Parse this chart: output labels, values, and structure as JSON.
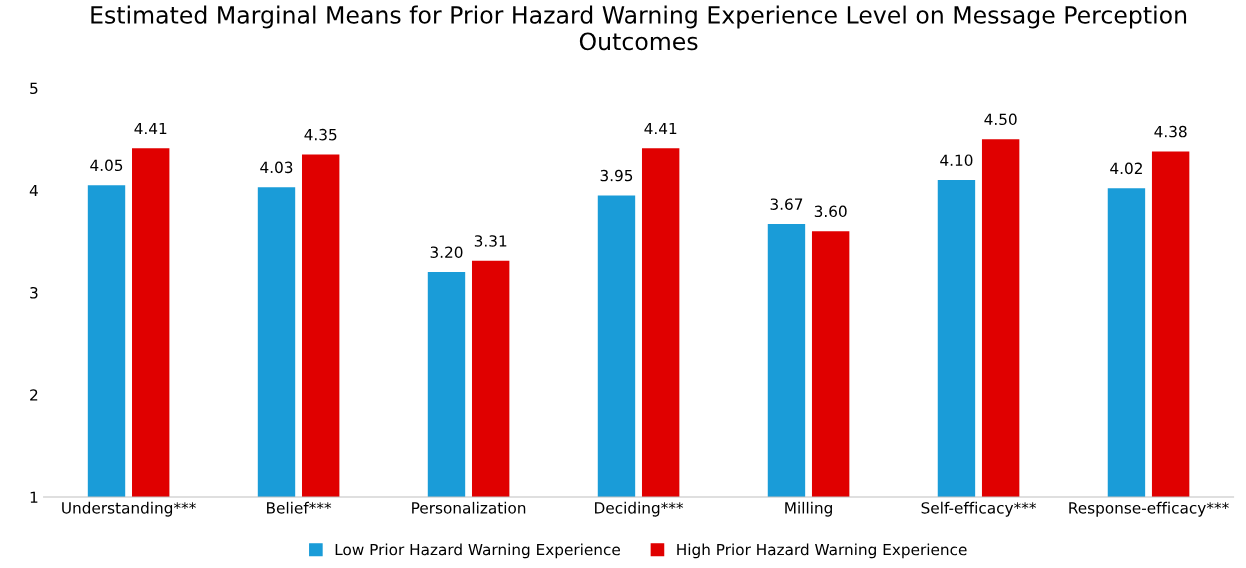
{
  "chart_data": {
    "type": "bar",
    "title": "Estimated Marginal Means for Prior Hazard Warning Experience Level on Message Perception Outcomes",
    "categories": [
      "Understanding***",
      "Belief***",
      "Personalization",
      "Deciding***",
      "Milling",
      "Self-efficacy***",
      "Response-efficacy***"
    ],
    "series": [
      {
        "name": "Low Prior Hazard Warning Experience",
        "color": "#1a9cd8",
        "values": [
          4.05,
          4.03,
          3.2,
          3.95,
          3.67,
          4.1,
          4.02
        ],
        "value_labels": [
          "4.05",
          "4.03",
          "3.20",
          "3.95",
          "3.67",
          "4.10",
          "4.02"
        ]
      },
      {
        "name": "High Prior Hazard Warning Experience",
        "color": "#e00000",
        "values": [
          4.41,
          4.35,
          3.31,
          4.41,
          3.6,
          4.5,
          4.38
        ],
        "value_labels": [
          "4.41",
          "4.35",
          "3.31",
          "4.41",
          "3.60",
          "4.50",
          "4.38"
        ]
      }
    ],
    "ylim": [
      1,
      5
    ],
    "yticks": [
      1,
      2,
      3,
      4,
      5
    ],
    "grid": false,
    "legend": "bottom"
  }
}
